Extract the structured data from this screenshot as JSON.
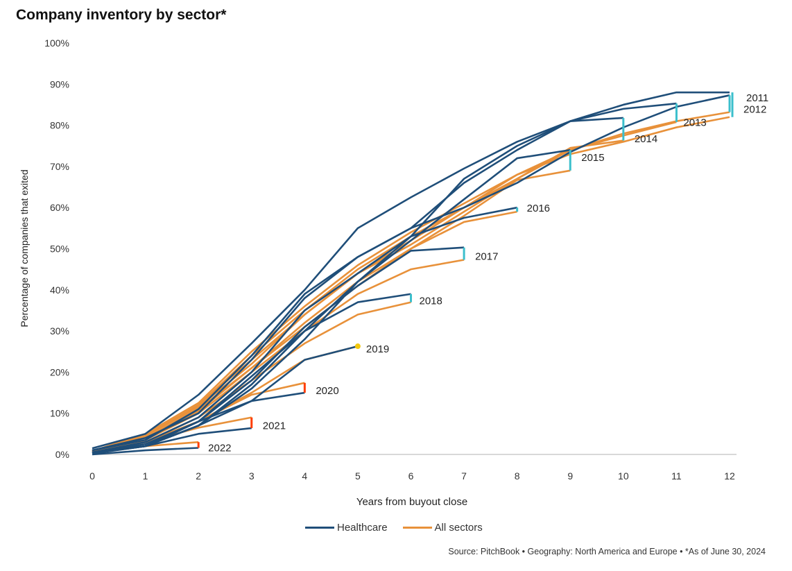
{
  "title": "Company inventory by sector*",
  "source": "Source: PitchBook  •  Geography: North America and Europe  •  *As of June 30, 2024",
  "chart_data": {
    "type": "line",
    "title": "Company inventory by sector*",
    "xlabel": "Years from buyout close",
    "ylabel": "Percentage of companies that exited",
    "xlim": [
      0,
      12
    ],
    "ylim": [
      0,
      100
    ],
    "x_ticks": [
      "0",
      "1",
      "2",
      "3",
      "4",
      "5",
      "6",
      "7",
      "8",
      "9",
      "10",
      "11",
      "12"
    ],
    "y_ticks": [
      "0%",
      "10%",
      "20%",
      "30%",
      "40%",
      "50%",
      "60%",
      "70%",
      "80%",
      "90%",
      "100%"
    ],
    "grid": false,
    "legend_position": "bottom",
    "colors": {
      "Healthcare": "#1f4e79",
      "All sectors": "#e8913a",
      "gap_positive": "#3bbfcc",
      "gap_negative": "#ff3d00",
      "gap_equal": "#f2c80f"
    },
    "legend": [
      "Healthcare",
      "All sectors"
    ],
    "vintages": [
      {
        "label": "2011",
        "Healthcare": [
          1.5,
          5,
          14.5,
          27,
          40,
          55,
          62.5,
          69.5,
          76,
          81,
          85,
          88,
          88
        ],
        "All sectors": [
          0.8,
          5,
          12.5,
          25,
          36,
          46,
          54,
          61,
          68,
          73,
          76,
          79.5,
          82
        ]
      },
      {
        "label": "2012",
        "Healthcare": [
          1,
          4,
          10,
          23,
          38,
          48,
          55,
          60,
          66,
          73.5,
          79.5,
          84.5,
          87.3
        ],
        "All sectors": [
          0.8,
          4.5,
          12,
          24,
          35,
          45,
          53,
          60,
          67,
          74,
          78,
          81,
          83.2
        ]
      },
      {
        "label": "2013",
        "Healthcare": [
          0.5,
          3,
          9,
          20,
          35,
          44,
          53,
          67,
          75,
          81,
          84,
          85.3
        ],
        "All sectors": [
          0.8,
          4.5,
          12,
          23,
          34,
          44,
          52,
          60,
          68,
          74,
          77.5,
          80.8
        ]
      },
      {
        "label": "2014",
        "Healthcare": [
          1,
          3.5,
          11,
          24,
          39,
          48,
          55,
          66,
          74,
          81,
          81.8
        ],
        "All sectors": [
          0.8,
          4.5,
          11.5,
          22,
          34,
          44,
          51,
          59,
          67,
          74.5,
          76.3
        ]
      },
      {
        "label": "2015",
        "Healthcare": [
          0.5,
          2.5,
          8,
          19,
          30,
          42,
          52,
          62,
          72,
          74
        ],
        "All sectors": [
          0.8,
          4,
          11,
          21,
          32,
          42,
          50,
          58,
          66.7,
          69
        ]
      },
      {
        "label": "2016",
        "Healthcare": [
          0.5,
          2,
          7,
          16,
          28,
          42,
          53,
          57.5,
          60
        ],
        "All sectors": [
          0.8,
          4,
          10.5,
          21,
          31,
          41,
          50,
          56.5,
          59
        ]
      },
      {
        "label": "2017",
        "Healthcare": [
          0.5,
          2,
          8,
          18,
          31,
          41,
          49.5,
          50.3
        ],
        "All sectors": [
          0.5,
          3.5,
          10,
          20,
          30,
          39,
          45,
          47.3
        ]
      },
      {
        "label": "2018",
        "Healthcare": [
          0.5,
          2,
          7,
          17,
          30,
          37,
          39
        ],
        "All sectors": [
          0.5,
          3,
          9,
          18,
          27,
          34,
          37
        ]
      },
      {
        "label": "2019",
        "Healthcare": [
          0.3,
          2,
          7,
          13,
          23,
          26.3
        ],
        "All sectors": [
          0.5,
          3,
          8,
          15,
          23,
          26.3
        ]
      },
      {
        "label": "2020",
        "Healthcare": [
          0.3,
          2,
          8,
          13,
          15
        ],
        "All sectors": [
          0.5,
          3,
          8,
          14.5,
          17.4
        ]
      },
      {
        "label": "2021",
        "Healthcare": [
          0.2,
          2,
          5,
          6.4
        ],
        "All sectors": [
          0.5,
          3,
          6.5,
          9
        ]
      },
      {
        "label": "2022",
        "Healthcare": [
          0,
          1,
          1.6
        ],
        "All sectors": [
          0.3,
          2,
          3
        ]
      }
    ]
  }
}
